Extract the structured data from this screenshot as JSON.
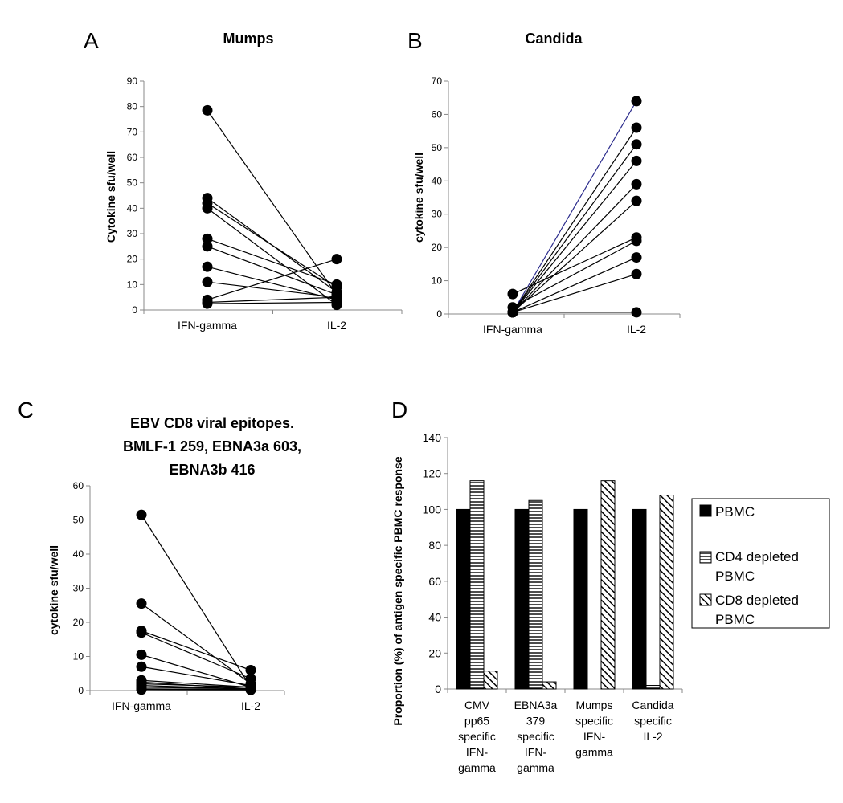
{
  "chart_data": [
    {
      "panel": "A",
      "type": "line",
      "title": "Mumps",
      "xlabel": "",
      "ylabel": "Cytokine sfu/well",
      "categories": [
        "IFN-gamma",
        "IL-2"
      ],
      "ylim": [
        0,
        90
      ],
      "yticks": [
        0,
        10,
        20,
        30,
        40,
        50,
        60,
        70,
        80,
        90
      ],
      "grid": false,
      "pairs": [
        [
          78.5,
          6
        ],
        [
          44,
          7
        ],
        [
          42,
          9
        ],
        [
          40,
          2
        ],
        [
          28,
          10
        ],
        [
          25,
          6
        ],
        [
          17,
          4
        ],
        [
          11,
          5
        ],
        [
          4,
          20
        ],
        [
          3,
          5
        ],
        [
          2.5,
          3
        ]
      ]
    },
    {
      "panel": "B",
      "type": "line",
      "title": "Candida",
      "xlabel": "",
      "ylabel": "cytokine sfu/well",
      "categories": [
        "IFN-gamma",
        "IL-2"
      ],
      "ylim": [
        0,
        70
      ],
      "yticks": [
        0,
        10,
        20,
        30,
        40,
        50,
        60,
        70
      ],
      "grid": false,
      "pairs": [
        [
          0.5,
          64
        ],
        [
          0.5,
          56
        ],
        [
          0.5,
          51
        ],
        [
          0.5,
          46
        ],
        [
          0.5,
          39
        ],
        [
          0.5,
          34
        ],
        [
          6,
          23
        ],
        [
          2,
          22
        ],
        [
          0.5,
          17
        ],
        [
          0.5,
          12
        ],
        [
          0.5,
          0.5
        ]
      ]
    },
    {
      "panel": "C",
      "type": "line",
      "title": "EBV CD8 viral epitopes. BMLF-1 259, EBNA3a 603, EBNA3b 416",
      "title_lines": [
        "EBV CD8 viral epitopes.",
        "BMLF-1 259, EBNA3a 603,",
        "EBNA3b 416"
      ],
      "xlabel": "",
      "ylabel": "cytokine sfu/well",
      "categories": [
        "IFN-gamma",
        "IL-2"
      ],
      "ylim": [
        0,
        60
      ],
      "yticks": [
        0,
        10,
        20,
        30,
        40,
        50,
        60
      ],
      "grid": false,
      "pairs": [
        [
          51.5,
          1
        ],
        [
          25.5,
          2
        ],
        [
          17.5,
          6
        ],
        [
          17,
          3.5
        ],
        [
          10.5,
          1
        ],
        [
          7,
          1.5
        ],
        [
          3,
          1
        ],
        [
          2.5,
          0.5
        ],
        [
          2,
          1
        ],
        [
          1.5,
          0.5
        ],
        [
          1,
          0.5
        ],
        [
          0.5,
          0.3
        ],
        [
          0.3,
          0.2
        ]
      ]
    },
    {
      "panel": "D",
      "type": "bar",
      "title": "",
      "xlabel": "",
      "ylabel": "Proportion (%) of antigen specific PBMC response",
      "categories": [
        [
          "CMV",
          "pp65",
          "specific",
          "IFN-",
          "gamma"
        ],
        [
          "EBNA3a",
          "379",
          "specific",
          "IFN-",
          "gamma"
        ],
        [
          "Mumps",
          "specific",
          "IFN-",
          "gamma"
        ],
        [
          "Candida",
          "specific",
          "IL-2"
        ]
      ],
      "ylim": [
        0,
        140
      ],
      "yticks": [
        0,
        20,
        40,
        60,
        80,
        100,
        120,
        140
      ],
      "grid": false,
      "legend_position": "right",
      "series": [
        {
          "name": "PBMC",
          "name_lines": [
            "PBMC"
          ],
          "pattern": "solid",
          "values": [
            100,
            100,
            100,
            100
          ]
        },
        {
          "name": "CD4 depleted PBMC",
          "name_lines": [
            "CD4 depleted",
            "PBMC"
          ],
          "pattern": "horizontal",
          "values": [
            116,
            105,
            0,
            2
          ]
        },
        {
          "name": "CD8 depleted PBMC",
          "name_lines": [
            "CD8 depleted",
            "PBMC"
          ],
          "pattern": "diagonal",
          "values": [
            10,
            4,
            116,
            108
          ]
        }
      ]
    }
  ]
}
